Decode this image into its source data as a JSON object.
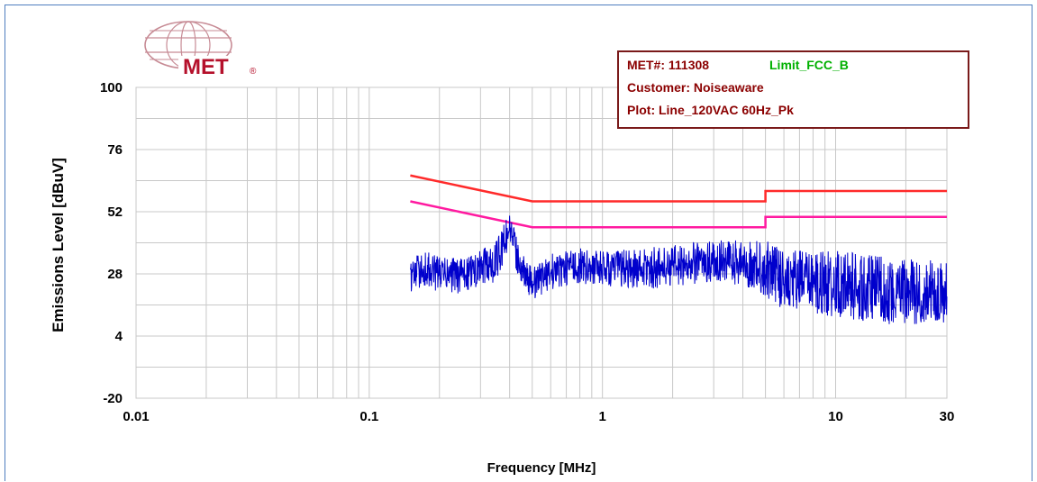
{
  "logo": {
    "text": "MET",
    "registered": "®"
  },
  "info_box": {
    "met_label": "MET#: 111308",
    "limit_label": "Limit_FCC_B",
    "customer_label": "Customer: Noiseaware",
    "plot_label": "Plot: Line_120VAC 60Hz_Pk"
  },
  "colors": {
    "info_text": "#8b0000",
    "limit_text": "#00b000",
    "qp_limit": "#ff2a2a",
    "avg_limit": "#ff1aa0",
    "trace": "#0000cc",
    "grid": "#c8c8c8"
  },
  "chart_data": {
    "type": "line",
    "title": "",
    "xlabel": "Frequency [MHz]",
    "ylabel": "Emissions Level [dBuV]",
    "x_scale": "log",
    "xlim": [
      0.01,
      30
    ],
    "ylim": [
      -20,
      100
    ],
    "x_ticks": [
      {
        "value": 0.01,
        "label": "0.01"
      },
      {
        "value": 0.1,
        "label": "0.1"
      },
      {
        "value": 1,
        "label": "1"
      },
      {
        "value": 10,
        "label": "10"
      },
      {
        "value": 30,
        "label": "30"
      }
    ],
    "y_ticks": [
      {
        "value": 100,
        "label": "100"
      },
      {
        "value": 76,
        "label": "76"
      },
      {
        "value": 52,
        "label": "52"
      },
      {
        "value": 28,
        "label": "28"
      },
      {
        "value": 4,
        "label": "4"
      },
      {
        "value": -20,
        "label": "-20"
      }
    ],
    "grid": true,
    "series": [
      {
        "key": "qp_limit",
        "x": [
          0.15,
          0.5,
          5,
          5,
          30
        ],
        "y": [
          66,
          56,
          56,
          60,
          60
        ]
      },
      {
        "key": "avg_limit",
        "x": [
          0.15,
          0.5,
          5,
          5,
          30
        ],
        "y": [
          56,
          46,
          46,
          50,
          50
        ]
      },
      {
        "key": "trace",
        "x": [
          0.15,
          0.17,
          0.2,
          0.25,
          0.3,
          0.35,
          0.38,
          0.4,
          0.42,
          0.45,
          0.5,
          0.6,
          0.8,
          1,
          1.5,
          2,
          3,
          4,
          5,
          6,
          8,
          10,
          15,
          20,
          30
        ],
        "y": [
          27,
          30,
          28,
          27,
          30,
          33,
          40,
          47,
          38,
          30,
          24,
          29,
          31,
          30,
          30,
          31,
          33,
          32,
          30,
          26,
          25,
          24,
          22,
          21,
          21
        ],
        "spread": [
          6,
          7,
          7,
          7,
          7,
          8,
          8,
          6,
          7,
          6,
          6,
          7,
          7,
          7,
          8,
          8,
          8,
          9,
          11,
          12,
          12,
          13,
          13,
          13,
          12
        ]
      }
    ]
  }
}
